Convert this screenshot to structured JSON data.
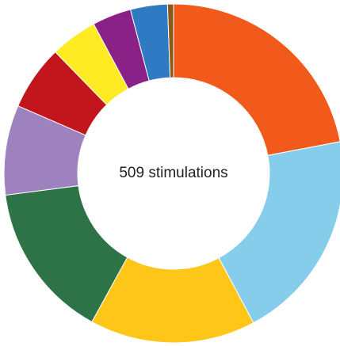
{
  "chart_data": {
    "type": "pie",
    "donut": true,
    "center_label": "509 stimulations",
    "slices": [
      {
        "value": 23.1,
        "color": "#F15A1A"
      },
      {
        "value": 21.2,
        "color": "#86CCEB"
      },
      {
        "value": 16.6,
        "color": "#FFC61A"
      },
      {
        "value": 15.7,
        "color": "#2E7247"
      },
      {
        "value": 9.0,
        "color": "#9E82BF"
      },
      {
        "value": 6.5,
        "color": "#C2151C"
      },
      {
        "value": 4.7,
        "color": "#FFEB24"
      },
      {
        "value": 3.9,
        "color": "#8A2186"
      },
      {
        "value": 3.7,
        "color": "#2F7BC3"
      },
      {
        "value": 0.6,
        "color": "#8A5A19"
      }
    ],
    "start_angle_deg": 0,
    "direction": "clockwise"
  }
}
